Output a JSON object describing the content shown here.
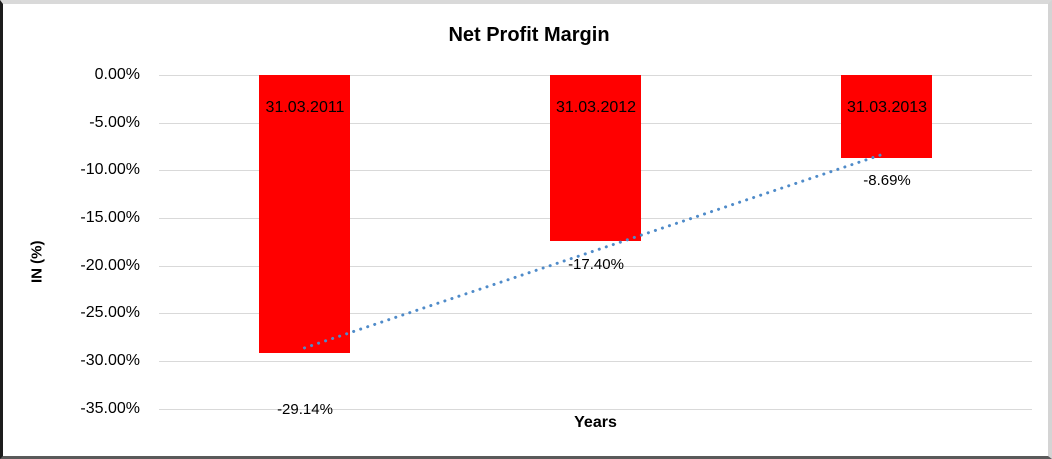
{
  "chart_data": {
    "type": "bar",
    "title": "Net Profit Margin",
    "xlabel": "Years",
    "ylabel": "IN (%)",
    "categories": [
      "31.03.2011",
      "31.03.2012",
      "31.03.2013"
    ],
    "series": [
      {
        "name": "Net Profit Margin",
        "values": [
          -29.14,
          -17.4,
          -8.69
        ]
      }
    ],
    "data_labels": [
      "-29.14%",
      "-17.40%",
      "-8.69%"
    ],
    "y_ticks": [
      "0.00%",
      "-5.00%",
      "-10.00%",
      "-15.00%",
      "-20.00%",
      "-25.00%",
      "-30.00%",
      "-35.00%"
    ],
    "y_tick_values": [
      0,
      -5,
      -10,
      -15,
      -20,
      -25,
      -30,
      -35
    ],
    "ylim": [
      -35,
      0
    ],
    "grid": true,
    "legend": "none",
    "colors": {
      "bar": "#FF0000",
      "trendline": "#4F8BC9",
      "gridline": "#D9D9D9",
      "text": "#000000",
      "background": "#FFFFFF"
    },
    "trendline": {
      "type": "linear",
      "style": "dotted",
      "fit_values": [
        -28.64,
        -8.19
      ]
    }
  }
}
